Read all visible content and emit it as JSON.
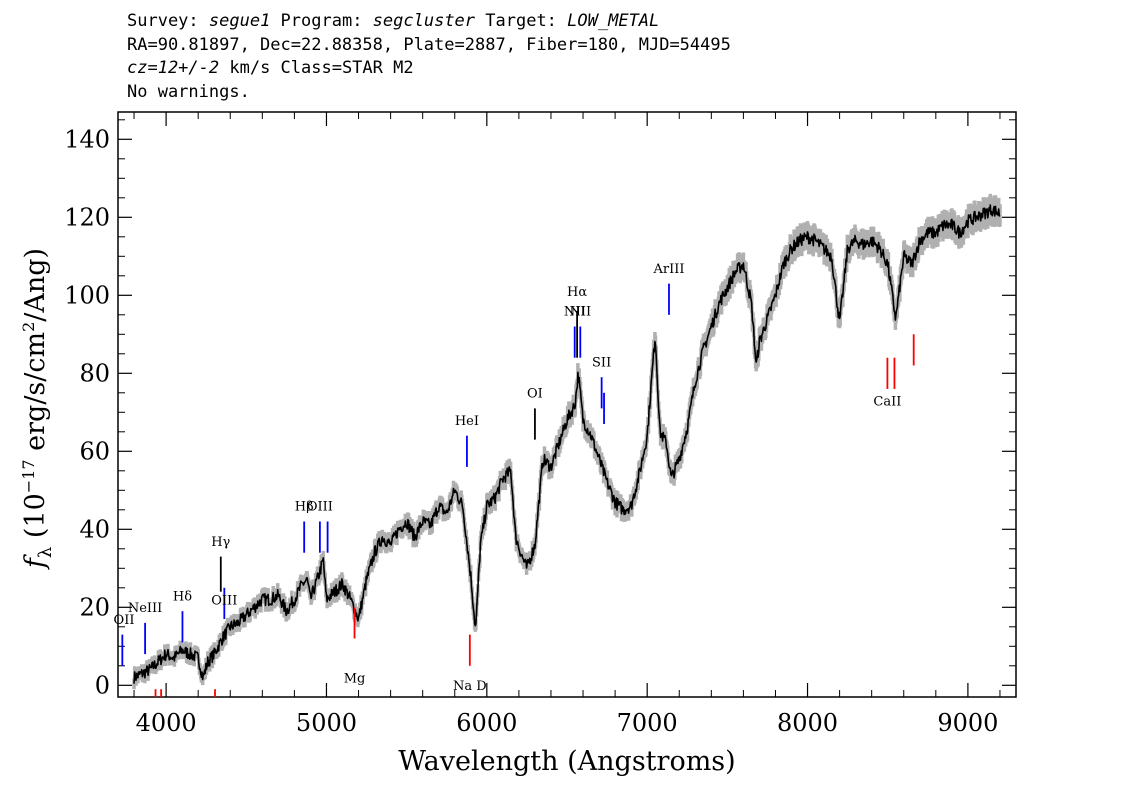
{
  "header": {
    "line1": {
      "survey_label": "Survey: ",
      "survey": "segue1",
      "program_label": " Program: ",
      "program": "segcluster",
      "target_label": " Target: ",
      "target": "LOW_METAL"
    },
    "line2": "RA=90.81897, Dec=22.88358, Plate=2887, Fiber=180, MJD=54495",
    "line3": {
      "cz": "cz=12+/-2",
      "rest": " km/s Class=STAR M2"
    },
    "line4": "No warnings."
  },
  "chart_data": {
    "type": "line",
    "xlabel": "Wavelength (Angstroms)",
    "ylabel": "f_λ (10^-17 erg/s/cm^2/Ang)",
    "ylabel_parts": {
      "f": "f",
      "lambda": "λ",
      "open": " (10",
      "exp1": "−17",
      "mid": " erg/s/cm",
      "exp2": "2",
      "close": "/Ang)"
    },
    "xlim": [
      3700,
      9300
    ],
    "ylim": [
      -3,
      147
    ],
    "x_ticks": [
      4000,
      5000,
      6000,
      7000,
      8000,
      9000
    ],
    "y_ticks": [
      0,
      20,
      40,
      60,
      80,
      100,
      120,
      140
    ],
    "x_ticks_labels": [
      "4000",
      "5000",
      "6000",
      "7000",
      "8000",
      "9000"
    ],
    "y_ticks_labels": [
      "0",
      "20",
      "40",
      "60",
      "80",
      "100",
      "120",
      "140"
    ],
    "grid": false,
    "series": [
      {
        "color": "#000000",
        "error_color": "#b0b0b0",
        "points": [
          [
            3800,
            2
          ],
          [
            3850,
            3
          ],
          [
            3900,
            4
          ],
          [
            3950,
            6
          ],
          [
            4000,
            8
          ],
          [
            4050,
            7
          ],
          [
            4100,
            9
          ],
          [
            4150,
            8
          ],
          [
            4200,
            7
          ],
          [
            4230,
            2
          ],
          [
            4260,
            6
          ],
          [
            4300,
            8
          ],
          [
            4350,
            12
          ],
          [
            4400,
            15
          ],
          [
            4450,
            16
          ],
          [
            4500,
            18
          ],
          [
            4550,
            20
          ],
          [
            4600,
            22
          ],
          [
            4650,
            22
          ],
          [
            4700,
            23
          ],
          [
            4750,
            19
          ],
          [
            4800,
            22
          ],
          [
            4850,
            26
          ],
          [
            4880,
            27
          ],
          [
            4900,
            22
          ],
          [
            4950,
            28
          ],
          [
            4980,
            32
          ],
          [
            5000,
            22
          ],
          [
            5050,
            24
          ],
          [
            5100,
            26
          ],
          [
            5150,
            22
          ],
          [
            5200,
            17
          ],
          [
            5250,
            27
          ],
          [
            5300,
            34
          ],
          [
            5350,
            38
          ],
          [
            5400,
            36
          ],
          [
            5450,
            40
          ],
          [
            5500,
            42
          ],
          [
            5550,
            38
          ],
          [
            5600,
            42
          ],
          [
            5650,
            41
          ],
          [
            5700,
            46
          ],
          [
            5750,
            44
          ],
          [
            5800,
            50
          ],
          [
            5850,
            46
          ],
          [
            5900,
            28
          ],
          [
            5930,
            14
          ],
          [
            5960,
            36
          ],
          [
            6000,
            46
          ],
          [
            6050,
            48
          ],
          [
            6100,
            53
          ],
          [
            6150,
            55
          ],
          [
            6180,
            38
          ],
          [
            6220,
            33
          ],
          [
            6250,
            30
          ],
          [
            6300,
            36
          ],
          [
            6350,
            58
          ],
          [
            6400,
            56
          ],
          [
            6450,
            62
          ],
          [
            6500,
            68
          ],
          [
            6550,
            72
          ],
          [
            6570,
            80
          ],
          [
            6600,
            68
          ],
          [
            6650,
            64
          ],
          [
            6700,
            58
          ],
          [
            6750,
            52
          ],
          [
            6800,
            47
          ],
          [
            6850,
            45
          ],
          [
            6900,
            46
          ],
          [
            6950,
            54
          ],
          [
            7000,
            64
          ],
          [
            7050,
            90
          ],
          [
            7080,
            65
          ],
          [
            7120,
            62
          ],
          [
            7150,
            53
          ],
          [
            7200,
            58
          ],
          [
            7250,
            66
          ],
          [
            7300,
            78
          ],
          [
            7350,
            86
          ],
          [
            7400,
            92
          ],
          [
            7450,
            98
          ],
          [
            7500,
            102
          ],
          [
            7550,
            106
          ],
          [
            7600,
            108
          ],
          [
            7650,
            98
          ],
          [
            7680,
            82
          ],
          [
            7700,
            88
          ],
          [
            7750,
            94
          ],
          [
            7800,
            100
          ],
          [
            7850,
            108
          ],
          [
            7900,
            112
          ],
          [
            7950,
            114
          ],
          [
            8000,
            115
          ],
          [
            8050,
            114
          ],
          [
            8100,
            112
          ],
          [
            8150,
            110
          ],
          [
            8200,
            93
          ],
          [
            8250,
            112
          ],
          [
            8300,
            114
          ],
          [
            8350,
            113
          ],
          [
            8400,
            114
          ],
          [
            8450,
            112
          ],
          [
            8500,
            108
          ],
          [
            8550,
            94
          ],
          [
            8600,
            110
          ],
          [
            8650,
            108
          ],
          [
            8700,
            114
          ],
          [
            8750,
            116
          ],
          [
            8800,
            116
          ],
          [
            8850,
            118
          ],
          [
            8900,
            118
          ],
          [
            8950,
            116
          ],
          [
            9000,
            119
          ],
          [
            9050,
            120
          ],
          [
            9100,
            121
          ],
          [
            9150,
            122
          ],
          [
            9200,
            121
          ]
        ]
      }
    ],
    "line_markers": [
      {
        "label": "OII",
        "x": 3727,
        "color": "#0000ff",
        "y_bot": 5,
        "y_top": 13,
        "label_y": 15
      },
      {
        "label": "NeIII",
        "x": 3869,
        "color": "#0000ff",
        "y_bot": 8,
        "y_top": 16,
        "label_y": 18
      },
      {
        "label": "Hδ",
        "x": 4102,
        "color": "#0000ff",
        "y_bot": 11,
        "y_top": 19,
        "label_y": 21
      },
      {
        "label": "Hγ",
        "x": 4341,
        "color": "#000000",
        "y_bot": 24,
        "y_top": 33,
        "label_y": 35
      },
      {
        "label": "OIII",
        "x": 4363,
        "color": "#0000ff",
        "y_bot": 17,
        "y_top": 25,
        "label_y": 20
      },
      {
        "label": "Hβ",
        "x": 4861,
        "color": "#0000ff",
        "y_bot": 34,
        "y_top": 42,
        "label_y": 44
      },
      {
        "label": "OIII",
        "x": 4959,
        "color": "#0000ff",
        "y_bot": 34,
        "y_top": 42,
        "label_y": 44
      },
      {
        "label": "",
        "x": 5007,
        "color": "#0000ff",
        "y_bot": 34,
        "y_top": 42,
        "label_y": 44
      },
      {
        "label": "HeI",
        "x": 5876,
        "color": "#0000ff",
        "y_bot": 56,
        "y_top": 64,
        "label_y": 66
      },
      {
        "label": "OI",
        "x": 6300,
        "color": "#000000",
        "y_bot": 63,
        "y_top": 71,
        "label_y": 73
      },
      {
        "label": "NII",
        "x": 6548,
        "color": "#0000ff",
        "y_bot": 84,
        "y_top": 92,
        "label_y": 94
      },
      {
        "label": "Hα",
        "x": 6563,
        "color": "#000000",
        "y_bot": 84,
        "y_top": 96,
        "label_y": 99
      },
      {
        "label": "NII",
        "x": 6583,
        "color": "#0000ff",
        "y_bot": 84,
        "y_top": 92,
        "label_y": 94
      },
      {
        "label": "SII",
        "x": 6716,
        "color": "#0000ff",
        "y_bot": 71,
        "y_top": 79,
        "label_y": 81
      },
      {
        "label": "",
        "x": 6731,
        "color": "#0000ff",
        "y_bot": 67,
        "y_top": 75,
        "label_y": 81
      },
      {
        "label": "ArIII",
        "x": 7136,
        "color": "#0000ff",
        "y_bot": 95,
        "y_top": 103,
        "label_y": 105
      },
      {
        "label": "",
        "x": 3934,
        "color": "#ff0000",
        "y_bot": -3,
        "y_top": -1,
        "label_y": -3
      },
      {
        "label": "",
        "x": 3969,
        "color": "#ff0000",
        "y_bot": -3,
        "y_top": -1,
        "label_y": -3
      },
      {
        "label": "",
        "x": 4305,
        "color": "#ff0000",
        "y_bot": -3,
        "y_top": -1,
        "label_y": -3
      },
      {
        "label": "Mg",
        "x": 5175,
        "color": "#ff0000",
        "y_bot": 12,
        "y_top": 20,
        "label_y": 0
      },
      {
        "label": "Na D",
        "x": 5894,
        "color": "#ff0000",
        "y_bot": 5,
        "y_top": 13,
        "label_y": -2
      },
      {
        "label": "CaII",
        "x": 8498,
        "color": "#ff0000",
        "y_bot": 76,
        "y_top": 84,
        "label_y": 71
      },
      {
        "label": "",
        "x": 8542,
        "color": "#ff0000",
        "y_bot": 76,
        "y_top": 84,
        "label_y": 71
      },
      {
        "label": "",
        "x": 8662,
        "color": "#ff0000",
        "y_bot": 82,
        "y_top": 90,
        "label_y": 71
      }
    ]
  }
}
